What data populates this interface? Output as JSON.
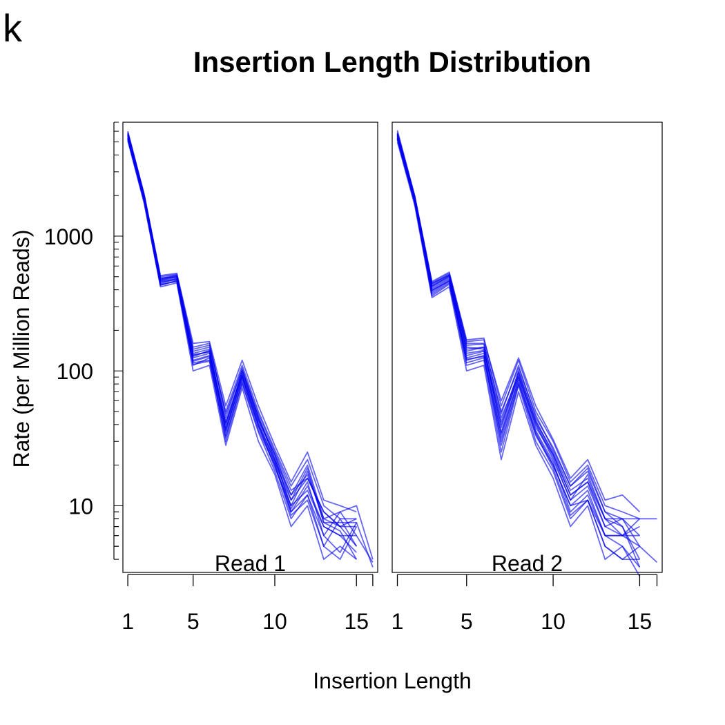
{
  "panel_letter": "k",
  "chart_data": {
    "type": "line",
    "title": "Insertion Length Distribution",
    "xlabel": "Insertion Length",
    "ylabel": "Rate (per Million Reads)",
    "y_scale": "log10",
    "ylim": [
      3.2,
      7000
    ],
    "xlim": [
      0.7,
      16.3
    ],
    "x_ticks": [
      1,
      5,
      10,
      15
    ],
    "x_ticks_minor": [
      16
    ],
    "y_ticks": [
      10,
      100,
      1000
    ],
    "line_color": "#0000ee",
    "grid": false,
    "panels": [
      {
        "label": "Read 1",
        "x": [
          1,
          2,
          3,
          4,
          5,
          6,
          7,
          8,
          9,
          10,
          11,
          12,
          13,
          14,
          15,
          16
        ],
        "series": [
          {
            "values": [
              5600,
              1950,
              470,
              500,
              130,
              140,
              35,
              90,
              40,
              22,
              10,
              18,
              7.5,
              7.5,
              7.5,
              3.5
            ]
          },
          {
            "values": [
              5200,
              1800,
              430,
              470,
              115,
              120,
              32,
              85,
              38,
              20,
              9,
              14,
              7,
              6,
              6,
              3.8
            ]
          },
          {
            "values": [
              6000,
              2050,
              500,
              520,
              150,
              160,
              45,
              105,
              45,
              24,
              12,
              20,
              8,
              9,
              10,
              4
            ]
          },
          {
            "values": [
              5300,
              1850,
              440,
              460,
              110,
              125,
              30,
              80,
              35,
              18,
              8,
              12,
              5,
              4,
              7
            ]
          },
          {
            "values": [
              5500,
              1900,
              460,
              480,
              125,
              135,
              40,
              95,
              42,
              21,
              11,
              16,
              9,
              7,
              5
            ]
          },
          {
            "values": [
              5800,
              2000,
              480,
              510,
              140,
              150,
              50,
              110,
              50,
              26,
              14,
              22,
              10,
              8,
              8
            ]
          },
          {
            "values": [
              5100,
              1750,
              420,
              450,
              100,
              110,
              28,
              75,
              30,
              17,
              7,
              10,
              4,
              5,
              4
            ]
          },
          {
            "values": [
              5700,
              1980,
              490,
              495,
              135,
              145,
              38,
              100,
              44,
              23,
              9.5,
              15,
              6,
              9,
              6
            ]
          },
          {
            "values": [
              5400,
              1880,
              455,
              475,
              120,
              130,
              36,
              92,
              40,
              19,
              10,
              13,
              7,
              6,
              4.5
            ]
          },
          {
            "values": [
              5900,
              2020,
              510,
              530,
              160,
              165,
              55,
              120,
              55,
              28,
              15,
              25,
              11,
              10,
              9
            ]
          },
          {
            "values": [
              5250,
              1820,
              435,
              465,
              112,
              118,
              33,
              82,
              36,
              20,
              8.5,
              11,
              5,
              8,
              5
            ]
          },
          {
            "values": [
              5650,
              1960,
              475,
              505,
              128,
              142,
              42,
              98,
              46,
              22,
              12,
              17,
              8,
              7,
              7
            ]
          },
          {
            "values": [
              5350,
              1860,
              445,
              485,
              118,
              128,
              37,
              88,
              39,
              21,
              9,
              12,
              6,
              4.5,
              7.5
            ]
          },
          {
            "values": [
              5550,
              1920,
              465,
              490,
              132,
              138,
              41,
              93,
              43,
              24,
              11,
              19,
              7.5,
              6.5,
              4
            ]
          },
          {
            "values": [
              5750,
              1990,
              485,
              515,
              145,
              155,
              48,
              102,
              48,
              25,
              13,
              16,
              9,
              7,
              8
            ]
          }
        ]
      },
      {
        "label": "Read 2",
        "x": [
          1,
          2,
          3,
          4,
          5,
          6,
          7,
          8,
          9,
          10,
          11,
          12,
          13,
          14,
          15,
          16
        ],
        "series": [
          {
            "values": [
              5600,
              1900,
              420,
              500,
              140,
              150,
              35,
              95,
              38,
              24,
              12,
              15,
              8,
              8,
              8,
              8
            ]
          },
          {
            "values": [
              5200,
              1750,
              380,
              460,
              120,
              130,
              28,
              80,
              33,
              20,
              10,
              13,
              6,
              6,
              5,
              3.8
            ]
          },
          {
            "values": [
              6100,
              2000,
              460,
              540,
              170,
              175,
              55,
              120,
              50,
              30,
              15,
              20,
              10,
              9,
              8
            ]
          },
          {
            "values": [
              5300,
              1800,
              360,
              440,
              110,
              120,
              25,
              78,
              30,
              18,
              8,
              11,
              5,
              4,
              5
            ]
          },
          {
            "values": [
              5500,
              1850,
              400,
              480,
              130,
              140,
              40,
              90,
              40,
              22,
              11,
              14,
              7,
              6,
              6
            ]
          },
          {
            "values": [
              5800,
              1950,
              440,
              520,
              160,
              160,
              48,
              110,
              45,
              27,
              14,
              18,
              9,
              7,
              4
            ]
          },
          {
            "values": [
              5000,
              1700,
              350,
              420,
              100,
              110,
              22,
              70,
              28,
              16,
              7,
              10,
              4,
              5,
              3.5
            ]
          },
          {
            "values": [
              5700,
              1930,
              430,
              510,
              150,
              145,
              38,
              100,
              42,
              25,
              13,
              16,
              8,
              7,
              3.5
            ]
          },
          {
            "values": [
              5400,
              1820,
              390,
              470,
              125,
              135,
              32,
              88,
              36,
              21,
              9,
              12,
              6,
              6,
              8
            ]
          },
          {
            "values": [
              5900,
              1980,
              450,
              530,
              165,
              170,
              60,
              125,
              55,
              31,
              16,
              22,
              11,
              12,
              9
            ]
          },
          {
            "values": [
              5250,
              1780,
              370,
              450,
              115,
              125,
              30,
              82,
              34,
              19,
              8.5,
              11,
              5,
              4,
              4
            ]
          },
          {
            "values": [
              5650,
              1900,
              425,
              505,
              145,
              150,
              42,
              98,
              43,
              24,
              12,
              15,
              7,
              8,
              6
            ]
          },
          {
            "values": [
              5350,
              1800,
              395,
              465,
              122,
              128,
              34,
              85,
              35,
              20,
              10,
              11,
              6,
              5,
              3
            ]
          },
          {
            "values": [
              5550,
              1870,
              410,
              490,
              135,
              142,
              45,
              92,
              41,
              23,
              11,
              17,
              8,
              6,
              7
            ]
          },
          {
            "values": [
              5750,
              1960,
              445,
              515,
              155,
              158,
              50,
              105,
              47,
              26,
              14,
              19,
              9,
              8,
              5
            ]
          }
        ]
      }
    ]
  }
}
